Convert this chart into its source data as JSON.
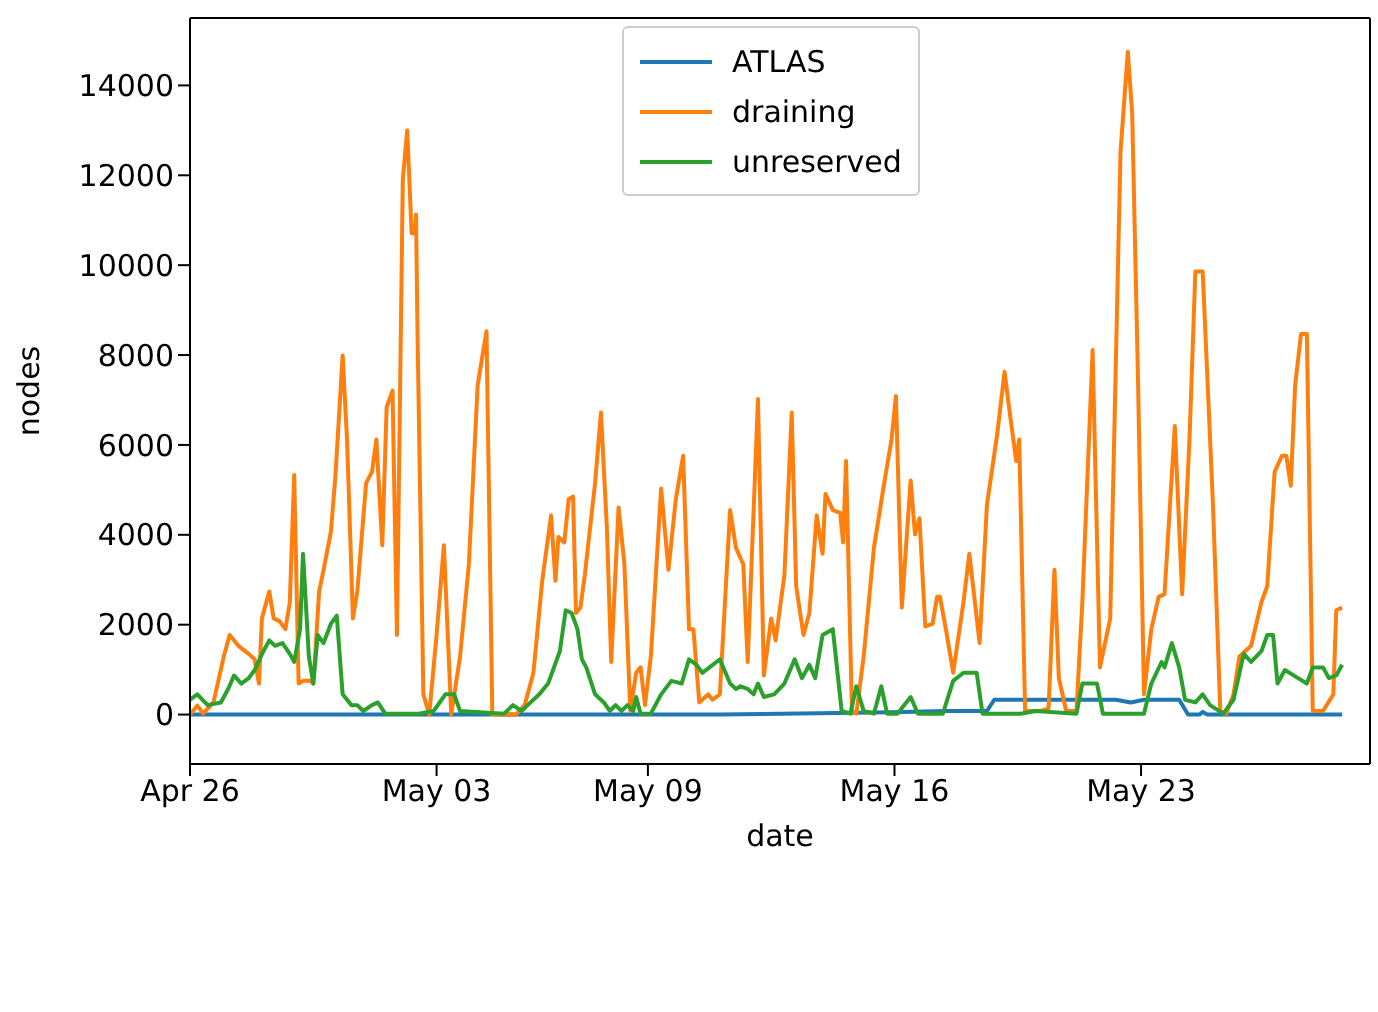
{
  "chart_data": {
    "type": "line",
    "xlabel": "date",
    "ylabel": "nodes",
    "xlim": [
      "--04-26",
      "--05-29T12:00"
    ],
    "xticks": [
      {
        "value": "--04-26",
        "label": "Apr 26"
      },
      {
        "value": "--05-03",
        "label": "May 03"
      },
      {
        "value": "--05-09",
        "label": "May 09"
      },
      {
        "value": "--05-16",
        "label": "May 16"
      },
      {
        "value": "--05-23",
        "label": "May 23"
      }
    ],
    "ylim": [
      -1100,
      15500
    ],
    "yticks": [
      0,
      2000,
      4000,
      6000,
      8000,
      10000,
      12000,
      14000
    ],
    "legend": "top",
    "marker": "none",
    "line_style": "solid",
    "series": [
      {
        "name": "ATLAS",
        "color": "#1f77b4",
        "x": [
          "--04-26T00:00",
          "--05-11T01:00",
          "--05-15T22:00",
          "--05-17T11:00",
          "--05-18T15:00",
          "--05-18T20:00",
          "--05-22T07:00",
          "--05-22T17:00",
          "--05-23T02:00",
          "--05-24T02:00",
          "--05-24T08:00",
          "--05-24T16:00",
          "--05-24T18:00",
          "--05-24T21:00",
          "--05-28T17:00"
        ],
        "values": [
          0,
          0,
          50,
          80,
          80,
          330,
          330,
          270,
          330,
          330,
          0,
          0,
          60,
          0,
          0
        ]
      },
      {
        "name": "draining",
        "color": "#ff7f0e",
        "x": [
          "--04-26T00:00",
          "--04-26T05:00",
          "--04-26T09:00",
          "--04-26T16:00",
          "--04-26T23:00",
          "--04-27T03:00",
          "--04-27T09:00",
          "--04-27T16:00",
          "--04-27T20:00",
          "--04-27T23:00",
          "--04-28T01:00",
          "--04-28T06:00",
          "--04-28T09:00",
          "--04-28T13:00",
          "--04-28T17:00",
          "--04-28T20:00",
          "--04-28T23:00",
          "--04-29T02:00",
          "--04-29T05:00",
          "--04-29T10:00",
          "--04-29T12:00",
          "--04-29T16:00",
          "--04-29T19:00",
          "--04-30T00:00",
          "--04-30T03:00",
          "--04-30T08:00",
          "--04-30T11:00",
          "--04-30T15:00",
          "--04-30T18:00",
          "--05-01T00:00",
          "--05-01T04:00",
          "--05-01T07:00",
          "--05-01T11:00",
          "--05-01T14:00",
          "--05-01T18:00",
          "--05-01T21:00",
          "--05-02T01:00",
          "--05-02T04:00",
          "--05-02T07:00",
          "--05-02T09:00",
          "--05-02T10:00",
          "--05-02T11:00",
          "--05-02T15:00",
          "--05-02T19:00",
          "--05-03T00:00",
          "--05-03T05:00",
          "--05-03T10:00",
          "--05-03T16:00",
          "--05-03T22:00",
          "--05-04T04:00",
          "--05-04T10:00",
          "--05-04T14:00",
          "--05-05T06:00",
          "--05-05T12:00",
          "--05-05T18:00",
          "--05-06T00:00",
          "--05-06T06:00",
          "--05-06T09:00",
          "--05-06T11:00",
          "--05-06T15:00",
          "--05-06T18:00",
          "--05-06T21:00",
          "--05-06T23:00",
          "--05-07T02:00",
          "--05-07T05:00",
          "--05-07T12:00",
          "--05-07T16:00",
          "--05-07T20:00",
          "--05-07T23:00",
          "--05-08T04:00",
          "--05-08T08:00",
          "--05-08T12:00",
          "--05-08T16:00",
          "--05-08T19:00",
          "--05-08T22:00",
          "--05-09T02:00",
          "--05-09T09:00",
          "--05-09T14:00",
          "--05-09T19:00",
          "--05-10T00:00",
          "--05-10T04:00",
          "--05-10T07:00",
          "--05-10T11:00",
          "--05-10T17:00",
          "--05-10T20:00",
          "--05-11T01:00",
          "--05-11T08:00",
          "--05-11T12:00",
          "--05-11T17:00",
          "--05-11T20:00",
          "--05-12T03:00",
          "--05-12T07:00",
          "--05-12T12:00",
          "--05-12T15:00",
          "--05-12T21:00",
          "--05-13T02:00",
          "--05-13T05:00",
          "--05-13T10:00",
          "--05-13T14:00",
          "--05-13T19:00",
          "--05-13T23:00",
          "--05-14T01:00",
          "--05-14T06:00",
          "--05-14T11:00",
          "--05-14T13:00",
          "--05-14T15:00",
          "--05-14T19:00",
          "--05-14T22:00",
          "--05-15T03:00",
          "--05-15T10:00",
          "--05-15T17:00",
          "--05-15T22:00",
          "--05-16T01:00",
          "--05-16T05:00",
          "--05-16T11:00",
          "--05-16T14:00",
          "--05-16T17:00",
          "--05-16T21:00",
          "--05-17T02:00",
          "--05-17T05:00",
          "--05-17T07:00",
          "--05-17T11:00",
          "--05-17T16:00",
          "--05-17T23:00",
          "--05-18T03:00",
          "--05-18T10:00",
          "--05-18T15:00",
          "--05-18T22:00",
          "--05-19T03:00",
          "--05-19T07:00",
          "--05-19T11:00",
          "--05-19T13:00",
          "--05-19T17:00",
          "--05-20T04:00",
          "--05-20T09:00",
          "--05-20T13:00",
          "--05-20T16:00",
          "--05-20T21:00",
          "--05-21T04:00",
          "--05-21T08:00",
          "--05-21T15:00",
          "--05-21T20:00",
          "--05-22T03:00",
          "--05-22T10:00",
          "--05-22T15:00",
          "--05-22T18:00",
          "--05-22T22:00",
          "--05-23T02:00",
          "--05-23T07:00",
          "--05-23T12:00",
          "--05-23T16:00",
          "--05-23T23:00",
          "--05-24T04:00",
          "--05-24T09:00",
          "--05-24T13:00",
          "--05-24T18:00",
          "--05-25T01:00",
          "--05-25T06:00",
          "--05-25T10:00",
          "--05-25T15:00",
          "--05-25T19:00",
          "--05-26T03:00",
          "--05-26T10:00",
          "--05-26T14:00",
          "--05-26T19:00",
          "--05-27T00:00",
          "--05-27T03:00",
          "--05-27T06:00",
          "--05-27T09:00",
          "--05-27T13:00",
          "--05-27T17:00",
          "--05-27T21:00",
          "--05-28T04:00",
          "--05-28T11:00",
          "--05-28T13:00",
          "--05-28T17:00"
        ],
        "values": [
          0,
          200,
          20,
          270,
          1290,
          1770,
          1530,
          1350,
          1230,
          690,
          2140,
          2740,
          2140,
          2080,
          1900,
          2500,
          5330,
          690,
          750,
          750,
          690,
          2740,
          3220,
          4070,
          5270,
          7990,
          6120,
          2140,
          2740,
          5150,
          5400,
          6120,
          3770,
          6840,
          7210,
          1770,
          11910,
          13000,
          10710,
          10710,
          11130,
          8530,
          450,
          0,
          1770,
          3770,
          0,
          1290,
          3340,
          7330,
          8530,
          0,
          0,
          210,
          930,
          2980,
          4430,
          2980,
          3950,
          3830,
          4790,
          4850,
          2260,
          2380,
          3100,
          5150,
          6720,
          4190,
          1170,
          4610,
          3340,
          80,
          930,
          1050,
          210,
          1290,
          5030,
          3220,
          4790,
          5760,
          1900,
          1900,
          270,
          450,
          330,
          450,
          4550,
          3710,
          3340,
          1170,
          7020,
          870,
          2140,
          1650,
          3100,
          6720,
          2860,
          1770,
          2260,
          4430,
          3580,
          4910,
          4550,
          4490,
          3830,
          5640,
          80,
          20,
          1290,
          3710,
          5150,
          6120,
          7090,
          2380,
          5210,
          4010,
          4370,
          1960,
          2020,
          2620,
          2620,
          1900,
          930,
          2500,
          3580,
          1590,
          4670,
          6240,
          7630,
          6600,
          5640,
          6120,
          80,
          80,
          140,
          3220,
          810,
          80,
          80,
          2500,
          8110,
          1050,
          2140,
          12520,
          14750,
          13360,
          7330,
          450,
          1900,
          2620,
          2680,
          6420,
          2680,
          6120,
          9860,
          9860,
          4670,
          80,
          20,
          450,
          1290,
          1530,
          2500,
          2860,
          5400,
          5760,
          5760,
          5090,
          7330,
          8470,
          8470,
          80,
          80,
          450,
          2320,
          2380
        ]
      },
      {
        "name": "unreserved",
        "color": "#2ca02c",
        "x": [
          "--04-26T00:00",
          "--04-26T05:00",
          "--04-26T12:00",
          "--04-26T21:00",
          "--04-27T02:00",
          "--04-27T06:00",
          "--04-27T11:00",
          "--04-27T16:00",
          "--04-27T20:00",
          "--04-28T02:00",
          "--04-28T06:00",
          "--04-28T10:00",
          "--04-28T15:00",
          "--04-28T20:00",
          "--04-28T23:00",
          "--04-29T03:00",
          "--04-29T05:00",
          "--04-29T09:00",
          "--04-29T12:00",
          "--04-29T15:00",
          "--04-29T19:00",
          "--04-30T00:00",
          "--04-30T04:00",
          "--04-30T08:00",
          "--04-30T14:00",
          "--04-30T18:00",
          "--04-30T22:00",
          "--05-01T04:00",
          "--05-01T08:00",
          "--05-01T13:00",
          "--05-02T12:00",
          "--05-02T22:00",
          "--05-03T06:00",
          "--05-03T12:00",
          "--05-03T16:00",
          "--05-04T22:00",
          "--05-05T04:00",
          "--05-05T10:00",
          "--05-05T14:00",
          "--05-05T22:00",
          "--05-06T04:00",
          "--05-06T12:00",
          "--05-06T16:00",
          "--05-06T20:00",
          "--05-07T00:00",
          "--05-07T03:00",
          "--05-07T06:00",
          "--05-07T12:00",
          "--05-07T18:00",
          "--05-07T22:00",
          "--05-08T02:00",
          "--05-08T06:00",
          "--05-08T10:00",
          "--05-08T14:00",
          "--05-08T16:00",
          "--05-08T19:00",
          "--05-09T02:00",
          "--05-09T09:00",
          "--05-09T16:00",
          "--05-09T23:00",
          "--05-10T04:00",
          "--05-10T09:00",
          "--05-10T13:00",
          "--05-10T18:00",
          "--05-11T01:00",
          "--05-11T08:00",
          "--05-11T12:00",
          "--05-11T15:00",
          "--05-11T20:00",
          "--05-12T00:00",
          "--05-12T03:00",
          "--05-12T07:00",
          "--05-12T14:00",
          "--05-12T21:00",
          "--05-13T04:00",
          "--05-13T09:00",
          "--05-13T14:00",
          "--05-13T18:00",
          "--05-13T23:00",
          "--05-14T06:00",
          "--05-14T12:00",
          "--05-14T18:00",
          "--05-14T22:00",
          "--05-15T03:00",
          "--05-15T10:00",
          "--05-15T15:00",
          "--05-15T19:00",
          "--05-16T02:00",
          "--05-16T11:00",
          "--05-16T16:00",
          "--05-17T09:00",
          "--05-17T16:00",
          "--05-17T23:00",
          "--05-18T08:00",
          "--05-18T12:00",
          "--05-19T14:00",
          "--05-20T00:00",
          "--05-21T04:00",
          "--05-21T08:00",
          "--05-21T18:00",
          "--05-21T22:00",
          "--05-23T02:00",
          "--05-23T07:00",
          "--05-23T14:00",
          "--05-23T16:00",
          "--05-23T21:00",
          "--05-24T02:00",
          "--05-24T06:00",
          "--05-24T13:00",
          "--05-24T18:00",
          "--05-24T23:00",
          "--05-25T08:00",
          "--05-25T15:00",
          "--05-25T22:00",
          "--05-26T03:00",
          "--05-26T10:00",
          "--05-26T14:00",
          "--05-26T18:00",
          "--05-26T21:00",
          "--05-27T02:00",
          "--05-27T11:00",
          "--05-27T17:00",
          "--05-27T21:00",
          "--05-28T04:00",
          "--05-28T08:00",
          "--05-28T13:00",
          "--05-28T17:00"
        ],
        "values": [
          330,
          450,
          210,
          270,
          570,
          870,
          690,
          810,
          990,
          1410,
          1650,
          1530,
          1590,
          1350,
          1170,
          1900,
          3580,
          1290,
          690,
          1770,
          1590,
          2020,
          2200,
          450,
          210,
          210,
          80,
          210,
          270,
          20,
          20,
          80,
          450,
          450,
          80,
          20,
          210,
          80,
          210,
          450,
          690,
          1410,
          2320,
          2260,
          1900,
          1230,
          1050,
          450,
          270,
          80,
          210,
          80,
          210,
          80,
          390,
          20,
          20,
          450,
          750,
          690,
          1230,
          1110,
          930,
          1050,
          1230,
          690,
          570,
          630,
          570,
          450,
          690,
          390,
          450,
          690,
          1230,
          810,
          1110,
          810,
          1770,
          1900,
          80,
          20,
          630,
          80,
          20,
          630,
          20,
          20,
          390,
          20,
          20,
          750,
          930,
          930,
          20,
          20,
          80,
          20,
          690,
          690,
          20,
          20,
          690,
          1170,
          1050,
          1590,
          1050,
          330,
          270,
          450,
          210,
          20,
          330,
          1350,
          1170,
          1410,
          1770,
          1770,
          690,
          990,
          810,
          690,
          1050,
          1050,
          810,
          870,
          1110
        ]
      }
    ]
  }
}
